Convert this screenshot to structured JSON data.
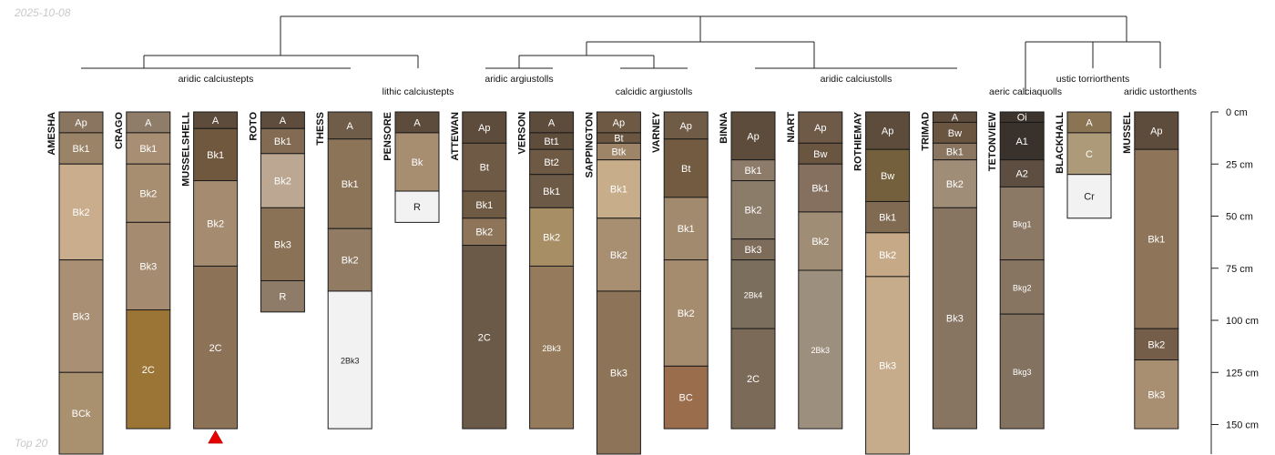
{
  "figure": {
    "date": "2025-10-08",
    "footer": "Top 20"
  },
  "chart_data": {
    "type": "soil-profile-sketch",
    "title": "",
    "depth_unit": "cm",
    "depth_range": [
      0,
      165
    ],
    "depth_ticks": [
      0,
      25,
      50,
      75,
      100,
      125,
      150
    ],
    "depth_tick_labels": [
      "0 cm",
      "25 cm",
      "50 cm",
      "75 cm",
      "100 cm",
      "125 cm",
      "150 cm"
    ],
    "profiles": [
      {
        "name": "AMESHA",
        "horizons": [
          {
            "name": "Ap",
            "top": 0,
            "bottom": 10,
            "color": "#8a7660"
          },
          {
            "name": "Bk1",
            "top": 10,
            "bottom": 25,
            "color": "#9a8366"
          },
          {
            "name": "Bk2",
            "top": 25,
            "bottom": 71,
            "color": "#c9ad8c"
          },
          {
            "name": "Bk3",
            "top": 71,
            "bottom": 125,
            "color": "#a98f73"
          },
          {
            "name": "BCk",
            "top": 125,
            "bottom": 165,
            "color": "#a9906f"
          }
        ]
      },
      {
        "name": "CRAGO",
        "horizons": [
          {
            "name": "A",
            "top": 0,
            "bottom": 10,
            "color": "#8f7d6a"
          },
          {
            "name": "Bk1",
            "top": 10,
            "bottom": 25,
            "color": "#a88f74"
          },
          {
            "name": "Bk2",
            "top": 25,
            "bottom": 53,
            "color": "#a78e71"
          },
          {
            "name": "Bk3",
            "top": 53,
            "bottom": 95,
            "color": "#a58c70"
          },
          {
            "name": "2C",
            "top": 95,
            "bottom": 152,
            "color": "#9b7535"
          }
        ]
      },
      {
        "name": "MUSSELSHELL",
        "marker": "triangle",
        "horizons": [
          {
            "name": "A",
            "top": 0,
            "bottom": 8,
            "color": "#5d4c3b"
          },
          {
            "name": "Bk1",
            "top": 8,
            "bottom": 33,
            "color": "#70583f"
          },
          {
            "name": "Bk2",
            "top": 33,
            "bottom": 74,
            "color": "#a58c70"
          },
          {
            "name": "2C",
            "top": 74,
            "bottom": 152,
            "color": "#8c7357"
          }
        ]
      },
      {
        "name": "ROTO",
        "horizons": [
          {
            "name": "A",
            "top": 0,
            "bottom": 8,
            "color": "#5e4d3c"
          },
          {
            "name": "Bk1",
            "top": 8,
            "bottom": 20,
            "color": "#826a53"
          },
          {
            "name": "Bk2",
            "top": 20,
            "bottom": 46,
            "color": "#bca892"
          },
          {
            "name": "Bk3",
            "top": 46,
            "bottom": 81,
            "color": "#8a7257"
          },
          {
            "name": "R",
            "top": 81,
            "bottom": 96,
            "color": "#8e7c68"
          }
        ]
      },
      {
        "name": "THESS",
        "horizons": [
          {
            "name": "A",
            "top": 0,
            "bottom": 13,
            "color": "#6f5c49"
          },
          {
            "name": "Bk1",
            "top": 13,
            "bottom": 56,
            "color": "#8b7458"
          },
          {
            "name": "Bk2",
            "top": 56,
            "bottom": 86,
            "color": "#917b63"
          },
          {
            "name": "2Bk3",
            "top": 86,
            "bottom": 152,
            "color": "#f2f2f2"
          }
        ]
      },
      {
        "name": "PENSORE",
        "horizons": [
          {
            "name": "A",
            "top": 0,
            "bottom": 10,
            "color": "#5d4c3b"
          },
          {
            "name": "Bk",
            "top": 10,
            "bottom": 38,
            "color": "#a78e71"
          },
          {
            "name": "R",
            "top": 38,
            "bottom": 53,
            "color": "#f2f2f2"
          }
        ]
      },
      {
        "name": "ATTEWAN",
        "horizons": [
          {
            "name": "Ap",
            "top": 0,
            "bottom": 15,
            "color": "#5d4c3b"
          },
          {
            "name": "Bt",
            "top": 15,
            "bottom": 38,
            "color": "#6e5a45"
          },
          {
            "name": "Bk1",
            "top": 38,
            "bottom": 51,
            "color": "#6f5a43"
          },
          {
            "name": "Bk2",
            "top": 51,
            "bottom": 64,
            "color": "#8e7559"
          },
          {
            "name": "2C",
            "top": 64,
            "bottom": 152,
            "color": "#6a5a47"
          }
        ]
      },
      {
        "name": "VERSON",
        "horizons": [
          {
            "name": "A",
            "top": 0,
            "bottom": 10,
            "color": "#5d4c3b"
          },
          {
            "name": "Bt1",
            "top": 10,
            "bottom": 18,
            "color": "#5f4d3b"
          },
          {
            "name": "Bt2",
            "top": 18,
            "bottom": 30,
            "color": "#6e5944"
          },
          {
            "name": "Bk1",
            "top": 30,
            "bottom": 46,
            "color": "#6c5a47"
          },
          {
            "name": "Bk2",
            "top": 46,
            "bottom": 74,
            "color": "#a78e64"
          },
          {
            "name": "2Bk3",
            "top": 74,
            "bottom": 152,
            "color": "#957a5c"
          }
        ]
      },
      {
        "name": "SAPPINGTON",
        "horizons": [
          {
            "name": "Ap",
            "top": 0,
            "bottom": 10,
            "color": "#6e5944"
          },
          {
            "name": "Bt",
            "top": 10,
            "bottom": 15,
            "color": "#6a5641"
          },
          {
            "name": "Btk",
            "top": 15,
            "bottom": 23,
            "color": "#9e8568"
          },
          {
            "name": "Bk1",
            "top": 23,
            "bottom": 51,
            "color": "#c8ad8b"
          },
          {
            "name": "Bk2",
            "top": 51,
            "bottom": 86,
            "color": "#a88f72"
          },
          {
            "name": "Bk3",
            "top": 86,
            "bottom": 165,
            "color": "#8d7458"
          }
        ]
      },
      {
        "name": "VARNEY",
        "horizons": [
          {
            "name": "Ap",
            "top": 0,
            "bottom": 13,
            "color": "#705b46"
          },
          {
            "name": "Bt",
            "top": 13,
            "bottom": 41,
            "color": "#735b42"
          },
          {
            "name": "Bk1",
            "top": 41,
            "bottom": 71,
            "color": "#a28a6f"
          },
          {
            "name": "Bk2",
            "top": 71,
            "bottom": 122,
            "color": "#a58c6f"
          },
          {
            "name": "BC",
            "top": 122,
            "bottom": 152,
            "color": "#9a6d4c"
          }
        ]
      },
      {
        "name": "BINNA",
        "horizons": [
          {
            "name": "Ap",
            "top": 0,
            "bottom": 23,
            "color": "#5d4c3b"
          },
          {
            "name": "Bk1",
            "top": 23,
            "bottom": 33,
            "color": "#8e7c6a"
          },
          {
            "name": "Bk2",
            "top": 33,
            "bottom": 61,
            "color": "#8b7b69"
          },
          {
            "name": "Bk3",
            "top": 61,
            "bottom": 71,
            "color": "#7d6c5a"
          },
          {
            "name": "2Bk4",
            "top": 71,
            "bottom": 104,
            "color": "#7c6e5c"
          },
          {
            "name": "2C",
            "top": 104,
            "bottom": 152,
            "color": "#7b6a58"
          }
        ]
      },
      {
        "name": "NIART",
        "horizons": [
          {
            "name": "Ap",
            "top": 0,
            "bottom": 15,
            "color": "#6e5a47"
          },
          {
            "name": "Bw",
            "top": 15,
            "bottom": 25,
            "color": "#6a5541"
          },
          {
            "name": "Bk1",
            "top": 25,
            "bottom": 48,
            "color": "#857060"
          },
          {
            "name": "Bk2",
            "top": 48,
            "bottom": 76,
            "color": "#a08d75"
          },
          {
            "name": "2Bk3",
            "top": 76,
            "bottom": 152,
            "color": "#9d8f7d"
          }
        ]
      },
      {
        "name": "ROTHIEMAY",
        "horizons": [
          {
            "name": "Ap",
            "top": 0,
            "bottom": 18,
            "color": "#5d4c3b"
          },
          {
            "name": "Bw",
            "top": 18,
            "bottom": 43,
            "color": "#74603d"
          },
          {
            "name": "Bk1",
            "top": 43,
            "bottom": 58,
            "color": "#806a51"
          },
          {
            "name": "Bk2",
            "top": 58,
            "bottom": 79,
            "color": "#c6aa88"
          },
          {
            "name": "Bk3",
            "top": 79,
            "bottom": 165,
            "color": "#c6ac8a"
          }
        ]
      },
      {
        "name": "TRIMAD",
        "horizons": [
          {
            "name": "A",
            "top": 0,
            "bottom": 5,
            "color": "#5d4c3b"
          },
          {
            "name": "Bw",
            "top": 5,
            "bottom": 15,
            "color": "#6a5541"
          },
          {
            "name": "Bk1",
            "top": 15,
            "bottom": 23,
            "color": "#8a7560"
          },
          {
            "name": "Bk2",
            "top": 23,
            "bottom": 46,
            "color": "#a08d78"
          },
          {
            "name": "Bk3",
            "top": 46,
            "bottom": 152,
            "color": "#877461"
          }
        ]
      },
      {
        "name": "TETONVIEW",
        "horizons": [
          {
            "name": "Oi",
            "top": 0,
            "bottom": 5,
            "color": "#3d342d"
          },
          {
            "name": "A1",
            "top": 5,
            "bottom": 23,
            "color": "#39312b"
          },
          {
            "name": "A2",
            "top": 23,
            "bottom": 36,
            "color": "#5d4e41"
          },
          {
            "name": "Bkg1",
            "top": 36,
            "bottom": 71,
            "color": "#8b7966"
          },
          {
            "name": "Bkg2",
            "top": 71,
            "bottom": 97,
            "color": "#877562"
          },
          {
            "name": "Bkg3",
            "top": 97,
            "bottom": 152,
            "color": "#847260"
          }
        ]
      },
      {
        "name": "BLACKHALL",
        "horizons": [
          {
            "name": "A",
            "top": 0,
            "bottom": 10,
            "color": "#8b7454"
          },
          {
            "name": "C",
            "top": 10,
            "bottom": 30,
            "color": "#ad9a78"
          },
          {
            "name": "Cr",
            "top": 30,
            "bottom": 51,
            "color": "#f2f2f2"
          }
        ]
      },
      {
        "name": "MUSSEL",
        "horizons": [
          {
            "name": "Ap",
            "top": 0,
            "bottom": 18,
            "color": "#5d4c3b"
          },
          {
            "name": "Bk1",
            "top": 18,
            "bottom": 104,
            "color": "#8e7559"
          },
          {
            "name": "Bk2",
            "top": 104,
            "bottom": 119,
            "color": "#745e49"
          },
          {
            "name": "Bk3",
            "top": 119,
            "bottom": 152,
            "color": "#a88f72"
          }
        ]
      }
    ],
    "dendrogram_leaf_labels": [
      "aridic calciustepts",
      "lithic calciustepts",
      "aridic argiustolls",
      "calcidic argiustolls",
      "aridic calciustolls",
      "aeric calciaquolls",
      "ustic torriorthents",
      "aridic ustorthents"
    ]
  }
}
